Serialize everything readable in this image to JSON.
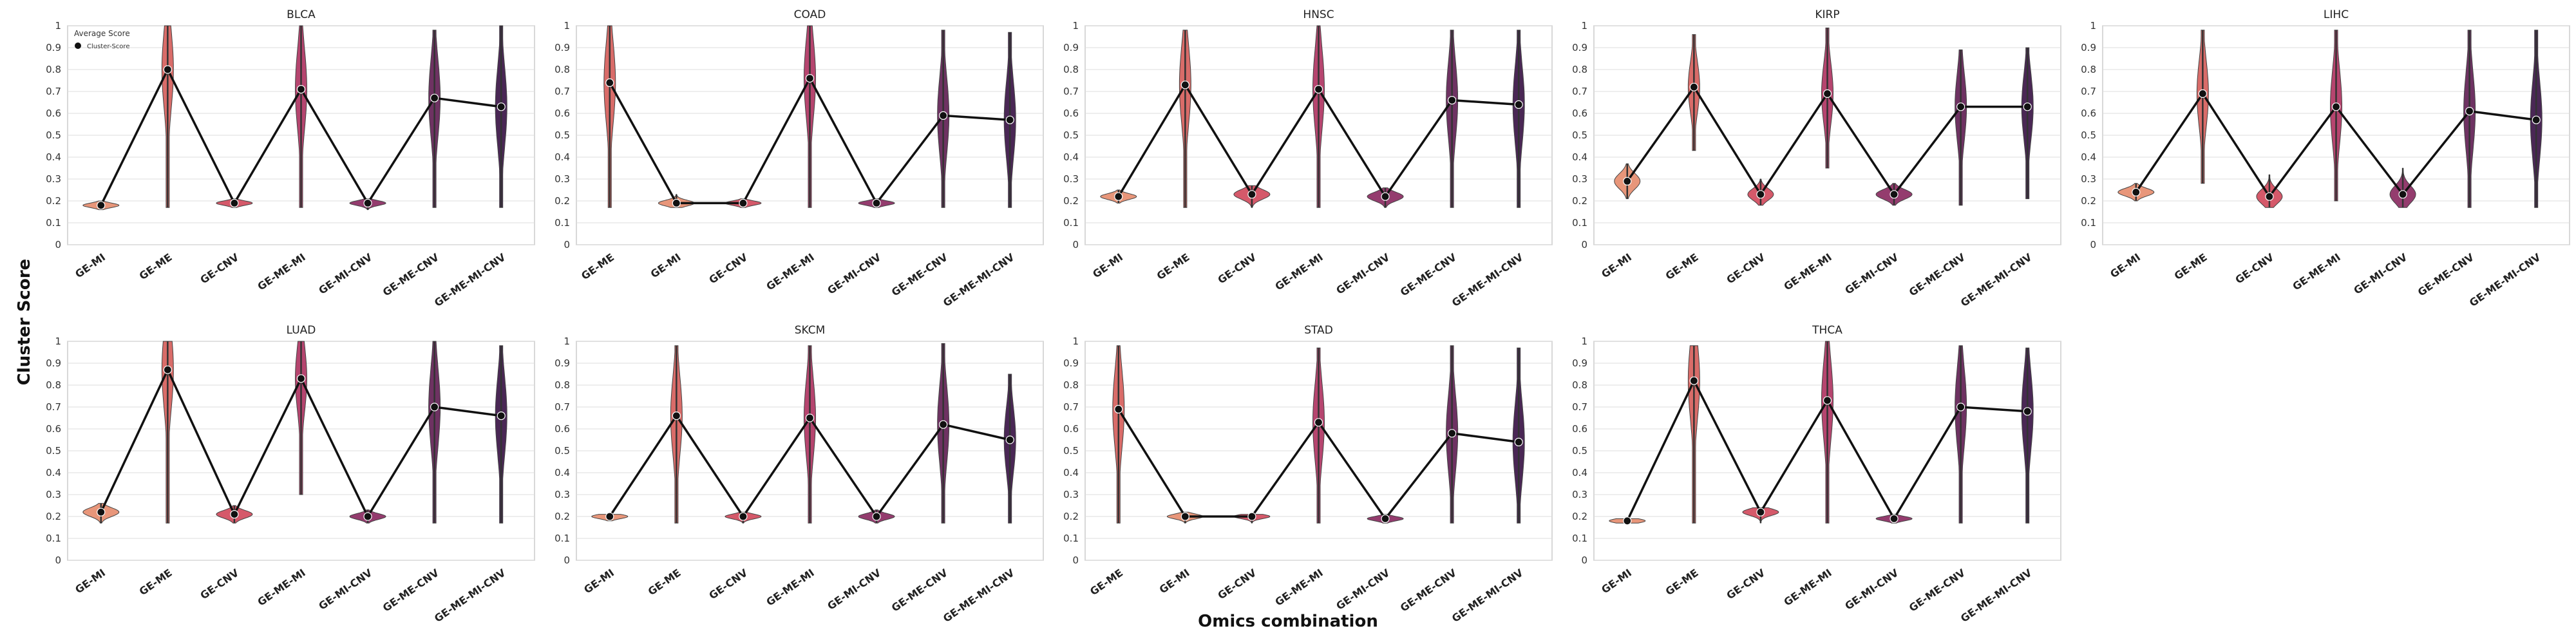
{
  "figure": {
    "ylabel": "Cluster Score",
    "xlabel": "Omics combination",
    "legend": {
      "title": "Average Score",
      "entry": "Cluster-Score",
      "placement": "top-left"
    }
  },
  "palette": {
    "GE-MI": "#E8967A",
    "GE-ME": "#D96C69",
    "GE-CNV": "#D5596A",
    "GE-ME-MI": "#B6456F",
    "GE-MI-CNV": "#943C6E",
    "GE-ME-CNV": "#6E3262",
    "GE-ME-MI-CNV": "#4A2755",
    "line": "#111111",
    "grid": "#dddddd",
    "frame": "#cccccc"
  },
  "chart_data": [
    {
      "type": "violin",
      "title": "BLCA",
      "categories": [
        "GE-MI",
        "GE-ME",
        "GE-CNV",
        "GE-ME-MI",
        "GE-MI-CNV",
        "GE-ME-CNV",
        "GE-ME-MI-CNV"
      ],
      "values": [
        0.18,
        0.8,
        0.19,
        0.71,
        0.19,
        0.67,
        0.63
      ],
      "ranges": [
        [
          0.16,
          0.2
        ],
        [
          0.17,
          1.0
        ],
        [
          0.17,
          0.21
        ],
        [
          0.17,
          1.0
        ],
        [
          0.16,
          0.21
        ],
        [
          0.17,
          0.98
        ],
        [
          0.17,
          1.0
        ]
      ],
      "ylim": [
        0,
        1
      ],
      "grid": true,
      "legend": true
    },
    {
      "type": "violin",
      "title": "COAD",
      "categories": [
        "GE-ME",
        "GE-MI",
        "GE-CNV",
        "GE-ME-MI",
        "GE-MI-CNV",
        "GE-ME-CNV",
        "GE-ME-MI-CNV"
      ],
      "values": [
        0.74,
        0.19,
        0.19,
        0.76,
        0.19,
        0.59,
        0.57
      ],
      "ranges": [
        [
          0.17,
          1.0
        ],
        [
          0.17,
          0.23
        ],
        [
          0.17,
          0.21
        ],
        [
          0.17,
          1.0
        ],
        [
          0.17,
          0.21
        ],
        [
          0.17,
          0.98
        ],
        [
          0.17,
          0.97
        ]
      ],
      "ylim": [
        0,
        1
      ],
      "grid": true
    },
    {
      "type": "violin",
      "title": "HNSC",
      "categories": [
        "GE-MI",
        "GE-ME",
        "GE-CNV",
        "GE-ME-MI",
        "GE-MI-CNV",
        "GE-ME-CNV",
        "GE-ME-MI-CNV"
      ],
      "values": [
        0.22,
        0.73,
        0.23,
        0.71,
        0.22,
        0.66,
        0.64
      ],
      "ranges": [
        [
          0.19,
          0.25
        ],
        [
          0.17,
          0.98
        ],
        [
          0.17,
          0.27
        ],
        [
          0.17,
          1.0
        ],
        [
          0.17,
          0.26
        ],
        [
          0.17,
          0.98
        ],
        [
          0.17,
          0.98
        ]
      ],
      "ylim": [
        0,
        1
      ],
      "grid": true
    },
    {
      "type": "violin",
      "title": "KIRP",
      "categories": [
        "GE-MI",
        "GE-ME",
        "GE-CNV",
        "GE-ME-MI",
        "GE-MI-CNV",
        "GE-ME-CNV",
        "GE-ME-MI-CNV"
      ],
      "values": [
        0.29,
        0.72,
        0.23,
        0.69,
        0.23,
        0.63,
        0.63
      ],
      "ranges": [
        [
          0.21,
          0.37
        ],
        [
          0.43,
          0.96
        ],
        [
          0.18,
          0.3
        ],
        [
          0.35,
          0.99
        ],
        [
          0.18,
          0.28
        ],
        [
          0.18,
          0.89
        ],
        [
          0.21,
          0.9
        ]
      ],
      "ylim": [
        0,
        1
      ],
      "grid": true
    },
    {
      "type": "violin",
      "title": "LIHC",
      "categories": [
        "GE-MI",
        "GE-ME",
        "GE-CNV",
        "GE-ME-MI",
        "GE-MI-CNV",
        "GE-ME-CNV",
        "GE-ME-MI-CNV"
      ],
      "values": [
        0.24,
        0.69,
        0.22,
        0.63,
        0.23,
        0.61,
        0.57
      ],
      "ranges": [
        [
          0.2,
          0.28
        ],
        [
          0.28,
          0.98
        ],
        [
          0.17,
          0.32
        ],
        [
          0.2,
          0.98
        ],
        [
          0.17,
          0.35
        ],
        [
          0.17,
          0.98
        ],
        [
          0.17,
          0.98
        ]
      ],
      "ylim": [
        0,
        1
      ],
      "grid": true
    },
    {
      "type": "violin",
      "title": "LUAD",
      "categories": [
        "GE-MI",
        "GE-ME",
        "GE-CNV",
        "GE-ME-MI",
        "GE-MI-CNV",
        "GE-ME-CNV",
        "GE-ME-MI-CNV"
      ],
      "values": [
        0.22,
        0.87,
        0.21,
        0.83,
        0.2,
        0.7,
        0.66
      ],
      "ranges": [
        [
          0.17,
          0.26
        ],
        [
          0.17,
          1.0
        ],
        [
          0.17,
          0.25
        ],
        [
          0.3,
          1.0
        ],
        [
          0.17,
          0.23
        ],
        [
          0.17,
          1.0
        ],
        [
          0.17,
          0.98
        ]
      ],
      "ylim": [
        0,
        1
      ],
      "grid": true
    },
    {
      "type": "violin",
      "title": "SKCM",
      "categories": [
        "GE-MI",
        "GE-ME",
        "GE-CNV",
        "GE-ME-MI",
        "GE-MI-CNV",
        "GE-ME-CNV",
        "GE-ME-MI-CNV"
      ],
      "values": [
        0.2,
        0.66,
        0.2,
        0.65,
        0.2,
        0.62,
        0.55
      ],
      "ranges": [
        [
          0.18,
          0.21
        ],
        [
          0.17,
          0.98
        ],
        [
          0.17,
          0.22
        ],
        [
          0.17,
          0.98
        ],
        [
          0.17,
          0.23
        ],
        [
          0.17,
          0.99
        ],
        [
          0.17,
          0.85
        ]
      ],
      "ylim": [
        0,
        1
      ],
      "grid": true
    },
    {
      "type": "violin",
      "title": "STAD",
      "categories": [
        "GE-ME",
        "GE-MI",
        "GE-CNV",
        "GE-ME-MI",
        "GE-MI-CNV",
        "GE-ME-CNV",
        "GE-ME-MI-CNV"
      ],
      "values": [
        0.69,
        0.2,
        0.2,
        0.63,
        0.19,
        0.58,
        0.54
      ],
      "ranges": [
        [
          0.17,
          0.98
        ],
        [
          0.17,
          0.22
        ],
        [
          0.17,
          0.21
        ],
        [
          0.17,
          0.97
        ],
        [
          0.17,
          0.21
        ],
        [
          0.17,
          0.98
        ],
        [
          0.17,
          0.97
        ]
      ],
      "ylim": [
        0,
        1
      ],
      "grid": true
    },
    {
      "type": "violin",
      "title": "THCA",
      "categories": [
        "GE-MI",
        "GE-ME",
        "GE-CNV",
        "GE-ME-MI",
        "GE-MI-CNV",
        "GE-ME-CNV",
        "GE-ME-MI-CNV"
      ],
      "values": [
        0.18,
        0.82,
        0.22,
        0.73,
        0.19,
        0.7,
        0.68
      ],
      "ranges": [
        [
          0.17,
          0.19
        ],
        [
          0.17,
          0.98
        ],
        [
          0.17,
          0.24
        ],
        [
          0.17,
          1.0
        ],
        [
          0.17,
          0.21
        ],
        [
          0.17,
          0.98
        ],
        [
          0.17,
          0.97
        ]
      ],
      "ylim": [
        0,
        1
      ],
      "grid": true
    }
  ],
  "yticks": [
    "0",
    "0.1",
    "0.2",
    "0.3",
    "0.4",
    "0.5",
    "0.6",
    "0.7",
    "0.8",
    "0.9",
    "1"
  ]
}
